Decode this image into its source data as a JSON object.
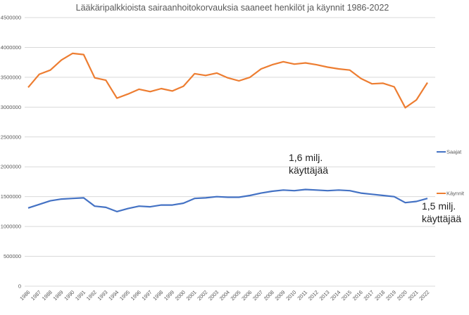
{
  "chart_data": {
    "type": "line",
    "title": "Lääkäripalkkioista sairaanhoitokorvauksia saaneet henkilöt ja käynnit 1986-2022",
    "xlabel": "",
    "ylabel": "",
    "ylim": [
      0,
      4500000
    ],
    "yticks": [
      "0",
      "500000",
      "1000000",
      "1500000",
      "2000000",
      "2500000",
      "3000000",
      "3500000",
      "4000000",
      "4500000"
    ],
    "grid": true,
    "legend_placement": "right",
    "x": [
      "1986",
      "1987",
      "1988",
      "1989",
      "1990",
      "1991",
      "1992",
      "1993",
      "1994",
      "1995",
      "1996",
      "1997",
      "1998",
      "1999",
      "2000",
      "2001",
      "2002",
      "2003",
      "2004",
      "2005",
      "2006",
      "2007",
      "2008",
      "2009",
      "2010",
      "2011",
      "2012",
      "2013",
      "2014",
      "2015",
      "2016",
      "2017",
      "2018",
      "2019",
      "2020",
      "2021",
      "2022"
    ],
    "series": [
      {
        "name": "Saajat",
        "color": "#4472c4",
        "values": [
          1310000,
          1370000,
          1430000,
          1460000,
          1470000,
          1480000,
          1340000,
          1320000,
          1250000,
          1300000,
          1340000,
          1330000,
          1360000,
          1360000,
          1390000,
          1470000,
          1480000,
          1500000,
          1490000,
          1490000,
          1520000,
          1560000,
          1590000,
          1610000,
          1600000,
          1620000,
          1610000,
          1600000,
          1610000,
          1600000,
          1560000,
          1540000,
          1520000,
          1500000,
          1400000,
          1420000,
          1470000
        ]
      },
      {
        "name": "Käynnit",
        "color": "#ed7d31",
        "values": [
          3330000,
          3550000,
          3620000,
          3790000,
          3900000,
          3880000,
          3490000,
          3450000,
          3150000,
          3220000,
          3300000,
          3260000,
          3310000,
          3270000,
          3350000,
          3560000,
          3530000,
          3570000,
          3490000,
          3440000,
          3500000,
          3640000,
          3710000,
          3760000,
          3720000,
          3740000,
          3710000,
          3670000,
          3640000,
          3620000,
          3480000,
          3390000,
          3400000,
          3340000,
          2990000,
          3120000,
          3410000
        ]
      }
    ],
    "annotations": [
      {
        "lines": [
          "1,6 milj.",
          "käyttäjää"
        ],
        "x": "2010",
        "y": 2050000
      },
      {
        "lines": [
          "1,5 milj.",
          "käyttäjää"
        ],
        "x": "2022",
        "y": 1400000
      }
    ]
  }
}
